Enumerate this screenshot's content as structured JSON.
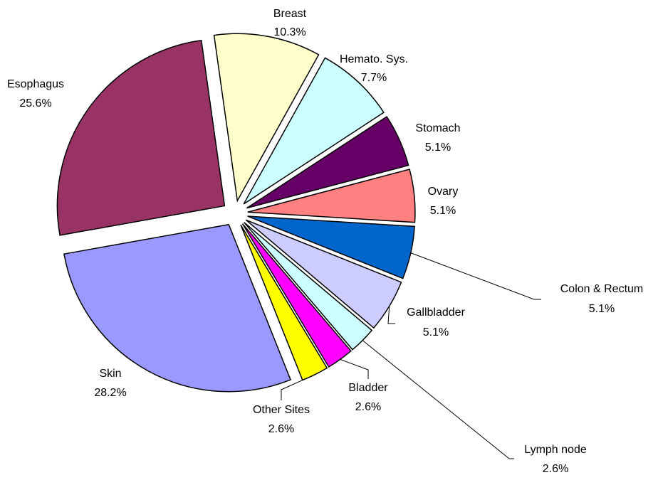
{
  "chart_data": {
    "type": "pie",
    "categories": [
      "Breast",
      "Hemato. Sys.",
      "Stomach",
      "Ovary",
      "Colon & Rectum",
      "Gallbladder",
      "Lymph node",
      "Bladder",
      "Other Sites",
      "Skin",
      "Esophagus"
    ],
    "values": [
      10.3,
      7.7,
      5.1,
      5.1,
      5.1,
      5.1,
      2.6,
      2.6,
      2.6,
      28.2,
      25.6
    ],
    "value_labels": [
      "10.3%",
      "7.7%",
      "5.1%",
      "5.1%",
      "5.1%",
      "5.1%",
      "2.6%",
      "2.6%",
      "2.6%",
      "28.2%",
      "25.6%"
    ],
    "colors": [
      "#ffffcc",
      "#ccffff",
      "#660066",
      "#ff8080",
      "#0066cc",
      "#ccccff",
      "#ccffff",
      "#ff00ff",
      "#ffff00",
      "#9999ff",
      "#993366"
    ]
  }
}
